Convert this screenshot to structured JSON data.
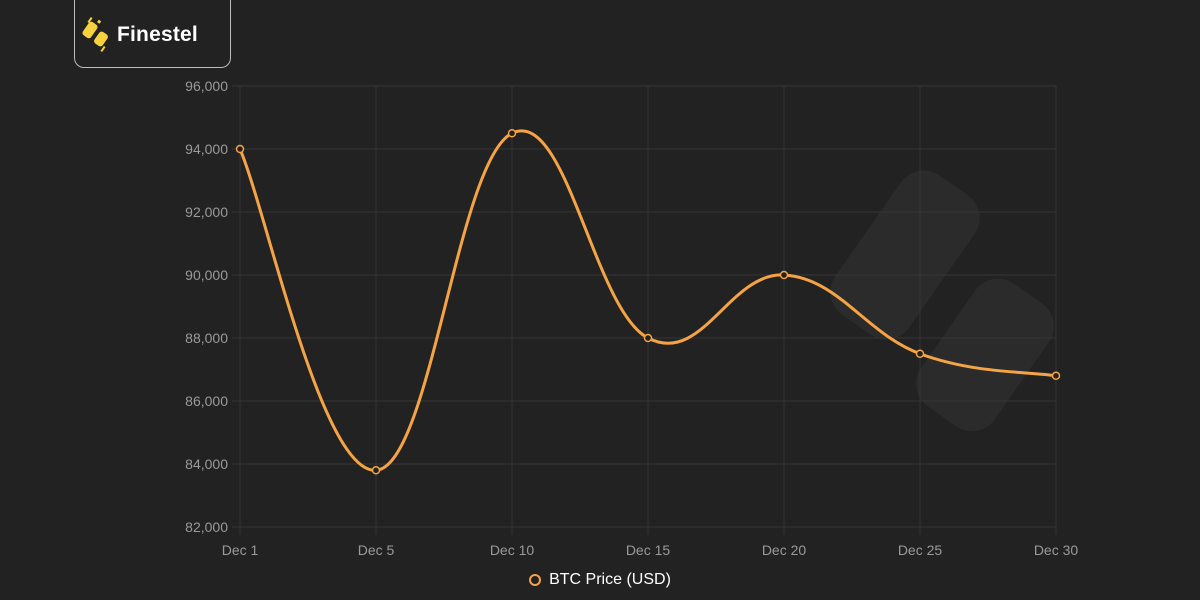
{
  "brand": {
    "name": "Finestel"
  },
  "colors": {
    "series": "#f5a445",
    "grid": "#363636",
    "background": "#222222",
    "brand_yellow": "#f7d23e"
  },
  "icons": {
    "logo": "candlestick-logo-icon",
    "legend": "circle-legend-icon"
  },
  "chart_data": {
    "type": "line",
    "x": [
      "Dec 1",
      "Dec 5",
      "Dec 10",
      "Dec 15",
      "Dec 20",
      "Dec 25",
      "Dec 30"
    ],
    "series": [
      {
        "name": "BTC Price (USD)",
        "values": [
          94000,
          83800,
          94500,
          88000,
          90000,
          87500,
          86800
        ]
      }
    ],
    "yticks": [
      "96,000",
      "94,000",
      "92,000",
      "90,000",
      "88,000",
      "86,000",
      "84,000",
      "82,000"
    ],
    "ylim": [
      82000,
      96000
    ],
    "grid": true,
    "legend_position": "bottom-center",
    "title": "",
    "xlabel": "",
    "ylabel": ""
  }
}
